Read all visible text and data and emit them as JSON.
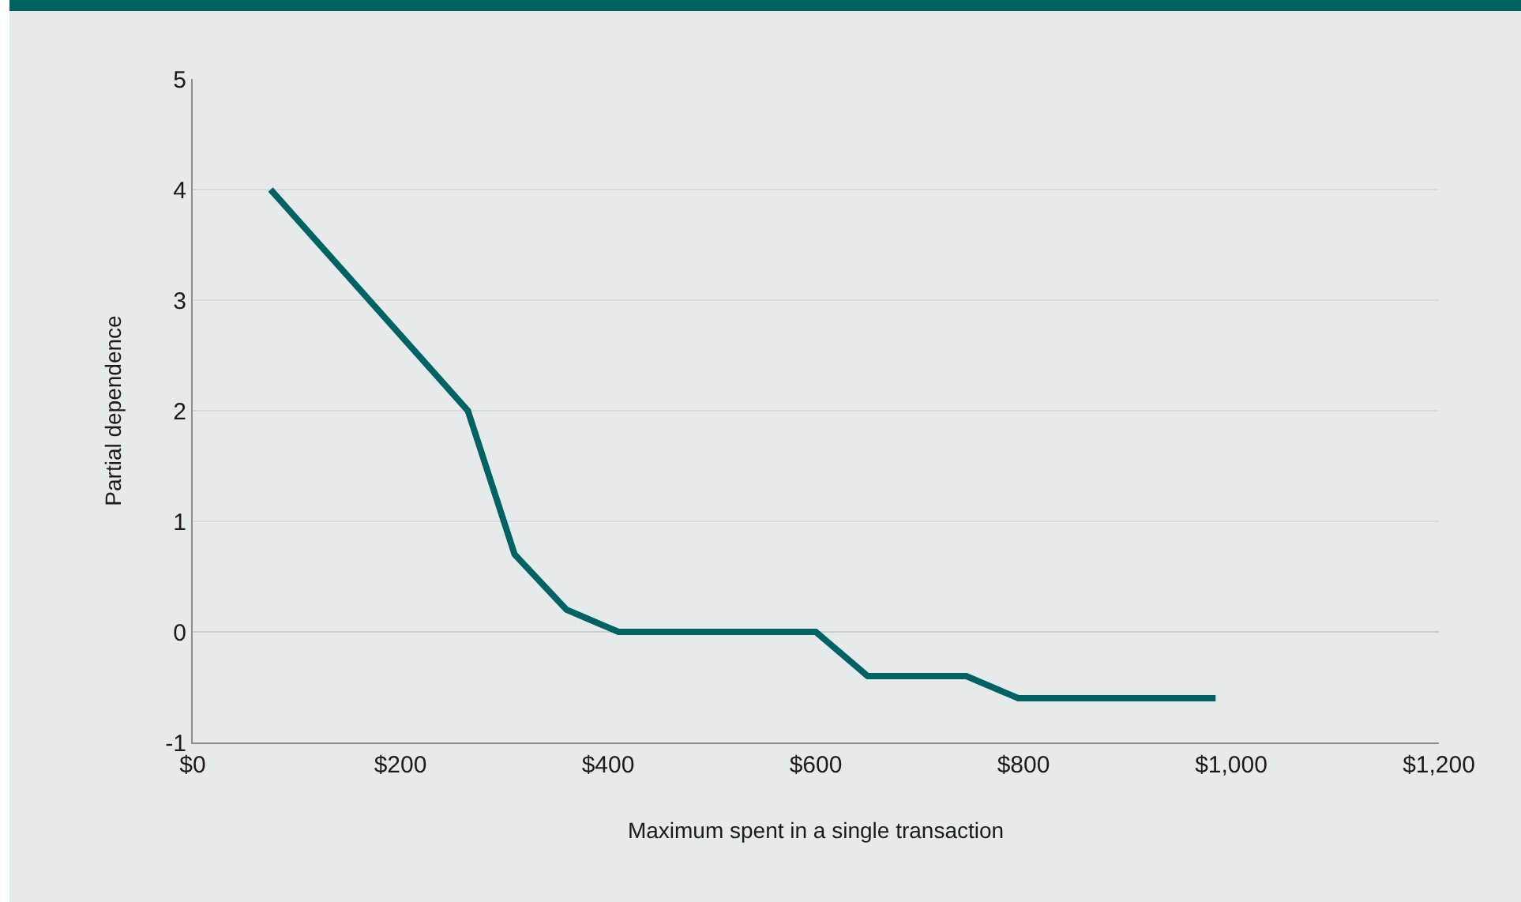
{
  "chart_data": {
    "type": "line",
    "xlabel": "Maximum spent in a single transaction",
    "ylabel": "Partial dependence",
    "x": [
      75,
      265,
      310,
      360,
      410,
      455,
      505,
      550,
      600,
      650,
      695,
      745,
      795,
      840,
      890,
      935,
      985
    ],
    "series": [
      {
        "color": "#006262",
        "values": [
          4,
          2,
          0.7,
          0.2,
          0,
          0,
          0,
          0,
          0,
          -0.4,
          -0.4,
          -0.4,
          -0.6,
          -0.6,
          -0.6,
          -0.6,
          -0.6
        ]
      }
    ],
    "xlim": [
      0,
      1200
    ],
    "ylim": [
      -1,
      5
    ],
    "xticks": [
      {
        "value": 0,
        "label": "$0"
      },
      {
        "value": 200,
        "label": "$200"
      },
      {
        "value": 400,
        "label": "$400"
      },
      {
        "value": 600,
        "label": "$600"
      },
      {
        "value": 800,
        "label": "$800"
      },
      {
        "value": 1000,
        "label": "$1,000"
      },
      {
        "value": 1200,
        "label": "$1,200"
      }
    ],
    "yticks": [
      -1,
      0,
      1,
      2,
      3,
      4,
      5
    ],
    "grid": "y",
    "line_style": "solid"
  }
}
